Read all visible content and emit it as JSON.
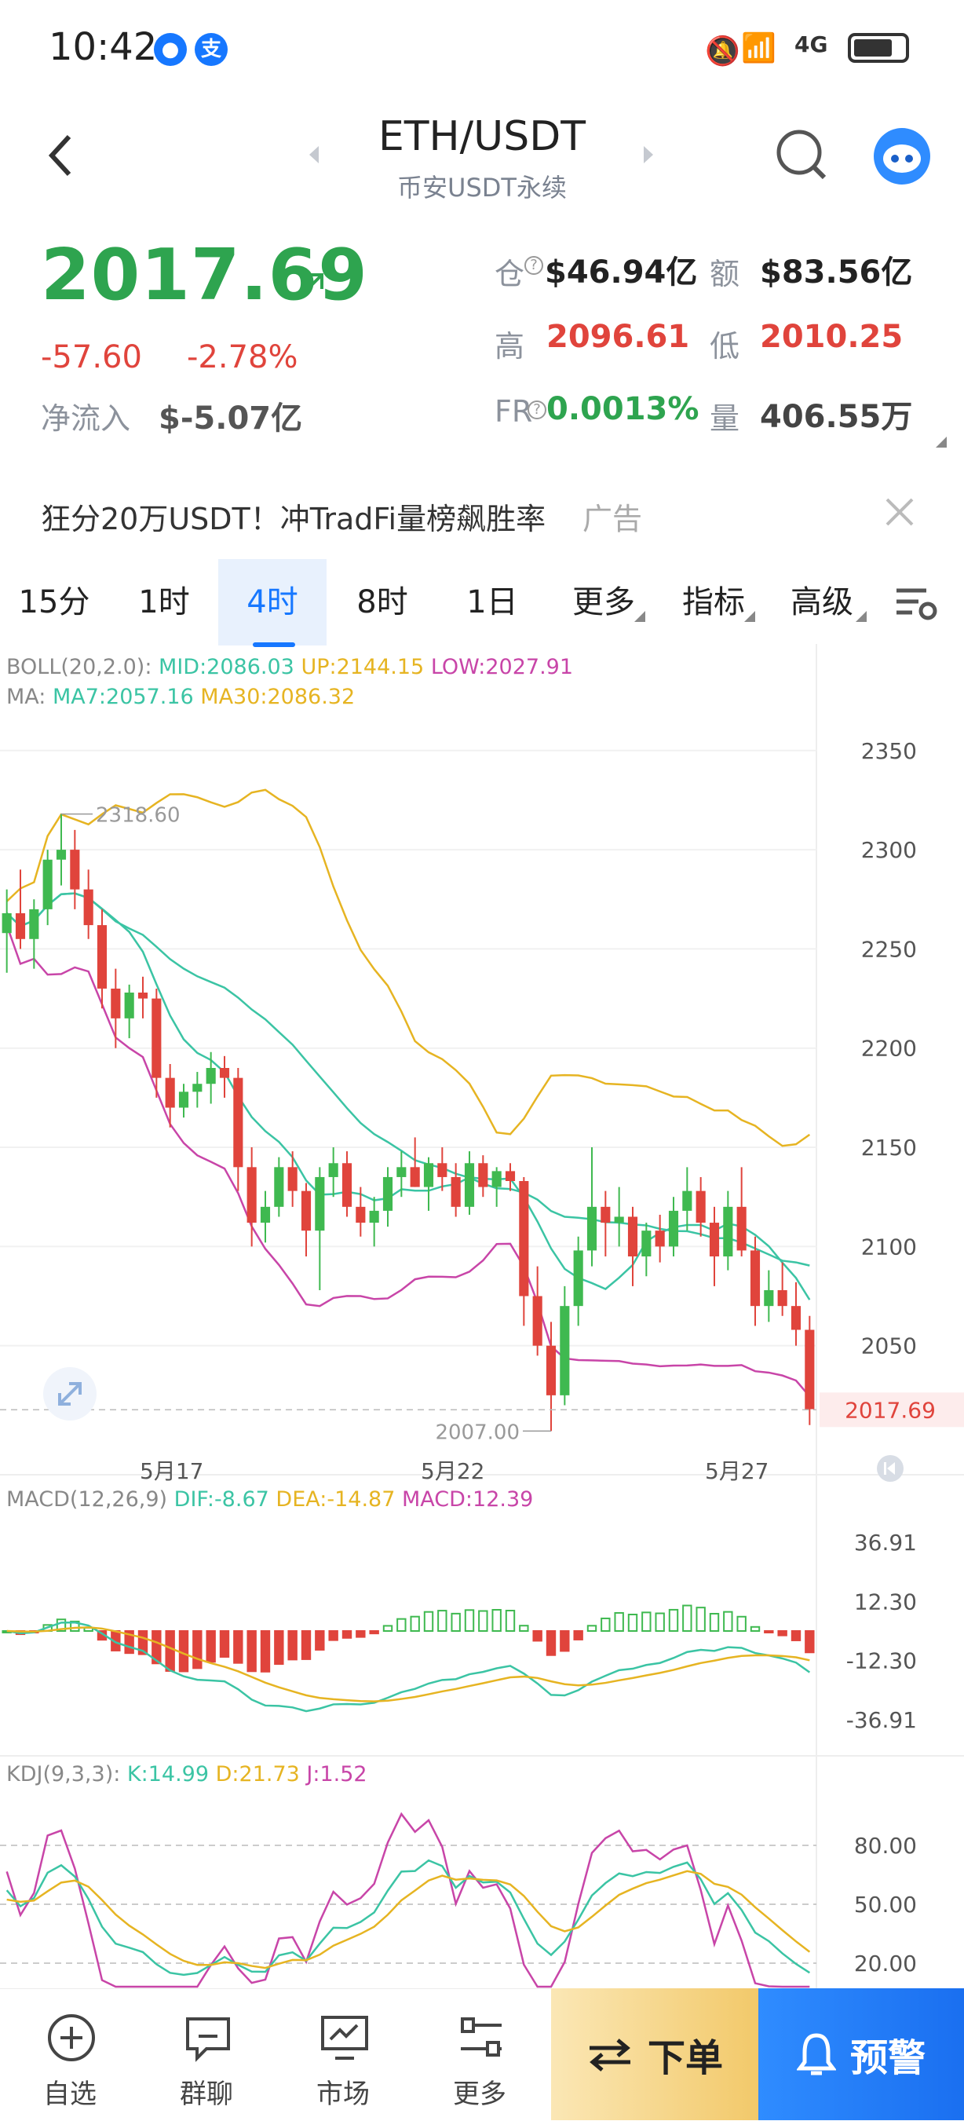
{
  "status_bar": {
    "time": "10:42",
    "network": "4G"
  },
  "header": {
    "pair": "ETH/USDT",
    "subtitle": "币安USDT永续"
  },
  "ticker": {
    "price": "2017.69",
    "change": "-57.60",
    "change_pct": "-2.78%",
    "net_inflow_label": "净流入",
    "net_inflow_value": "$-5.07亿",
    "open_interest_label": "仓",
    "open_interest_value": "$46.94亿",
    "amount_label": "额",
    "amount_value": "$83.56亿",
    "high_label": "高",
    "high_value": "2096.61",
    "low_label": "低",
    "low_value": "2010.25",
    "fr_label": "FR",
    "fr_value": "0.0013%",
    "volume_label": "量",
    "volume_value": "406.55万"
  },
  "ad": {
    "text": "狂分20万USDT！冲TradFi量榜飙胜率",
    "tag": "广告"
  },
  "timeframes": [
    "15分",
    "1时",
    "4时",
    "8时",
    "1日",
    "更多",
    "指标",
    "高级"
  ],
  "active_timeframe": "4时",
  "indicators": {
    "boll_name": "BOLL(20,2.0):",
    "boll_mid": "MID:2086.03",
    "boll_up": "UP:2144.15",
    "boll_low": "LOW:2027.91",
    "ma_name": "MA:",
    "ma7": "MA7:2057.16",
    "ma30": "MA30:2086.32",
    "macd_name": "MACD(12,26,9)",
    "macd_dif": "DIF:-8.67",
    "macd_dea": "DEA:-14.87",
    "macd_val": "MACD:12.39",
    "kdj_name": "KDJ(9,3,3):",
    "kdj_k": "K:14.99",
    "kdj_d": "D:21.73",
    "kdj_j": "J:1.52"
  },
  "chart_data": [
    {
      "type": "candlestick",
      "y_ticks": [
        "2350",
        "2300",
        "2250",
        "2200",
        "2150",
        "2100",
        "2050"
      ],
      "ylim": [
        2000,
        2380
      ],
      "x_labels": [
        "5月17",
        "5月22",
        "5月27"
      ],
      "max_label": "2318.60",
      "min_label": "2007.00",
      "last_price_label": "2017.69",
      "ohlc": [
        [
          2258,
          2280,
          2238,
          2268
        ],
        [
          2268,
          2290,
          2250,
          2255
        ],
        [
          2255,
          2275,
          2240,
          2270
        ],
        [
          2270,
          2300,
          2262,
          2295
        ],
        [
          2295,
          2318,
          2282,
          2300
        ],
        [
          2300,
          2310,
          2270,
          2280
        ],
        [
          2280,
          2290,
          2255,
          2262
        ],
        [
          2262,
          2270,
          2220,
          2230
        ],
        [
          2230,
          2240,
          2200,
          2215
        ],
        [
          2215,
          2232,
          2205,
          2228
        ],
        [
          2228,
          2236,
          2215,
          2225
        ],
        [
          2225,
          2230,
          2175,
          2185
        ],
        [
          2185,
          2192,
          2160,
          2170
        ],
        [
          2170,
          2182,
          2165,
          2178
        ],
        [
          2178,
          2188,
          2170,
          2182
        ],
        [
          2182,
          2198,
          2172,
          2190
        ],
        [
          2190,
          2196,
          2175,
          2185
        ],
        [
          2185,
          2190,
          2128,
          2140
        ],
        [
          2140,
          2150,
          2100,
          2112
        ],
        [
          2112,
          2128,
          2102,
          2120
        ],
        [
          2120,
          2145,
          2115,
          2140
        ],
        [
          2140,
          2148,
          2120,
          2128
        ],
        [
          2128,
          2132,
          2095,
          2108
        ],
        [
          2108,
          2140,
          2078,
          2135
        ],
        [
          2135,
          2150,
          2125,
          2142
        ],
        [
          2142,
          2148,
          2115,
          2120
        ],
        [
          2120,
          2130,
          2105,
          2112
        ],
        [
          2112,
          2125,
          2100,
          2118
        ],
        [
          2118,
          2140,
          2110,
          2135
        ],
        [
          2135,
          2148,
          2125,
          2140
        ],
        [
          2140,
          2155,
          2130,
          2130
        ],
        [
          2130,
          2145,
          2118,
          2142
        ],
        [
          2142,
          2150,
          2128,
          2135
        ],
        [
          2135,
          2142,
          2115,
          2120
        ],
        [
          2120,
          2148,
          2116,
          2142
        ],
        [
          2142,
          2146,
          2125,
          2130
        ],
        [
          2130,
          2140,
          2120,
          2138
        ],
        [
          2138,
          2142,
          2128,
          2133
        ],
        [
          2133,
          2135,
          2060,
          2075
        ],
        [
          2075,
          2090,
          2045,
          2050
        ],
        [
          2050,
          2062,
          2007,
          2025
        ],
        [
          2025,
          2080,
          2020,
          2070
        ],
        [
          2070,
          2105,
          2060,
          2098
        ],
        [
          2098,
          2150,
          2090,
          2120
        ],
        [
          2120,
          2128,
          2095,
          2112
        ],
        [
          2112,
          2130,
          2100,
          2115
        ],
        [
          2115,
          2120,
          2080,
          2095
        ],
        [
          2095,
          2112,
          2085,
          2108
        ],
        [
          2108,
          2116,
          2092,
          2100
        ],
        [
          2100,
          2125,
          2095,
          2118
        ],
        [
          2118,
          2140,
          2108,
          2128
        ],
        [
          2128,
          2135,
          2105,
          2112
        ],
        [
          2112,
          2120,
          2080,
          2095
        ],
        [
          2095,
          2128,
          2088,
          2120
        ],
        [
          2120,
          2140,
          2095,
          2098
        ],
        [
          2098,
          2105,
          2060,
          2070
        ],
        [
          2070,
          2088,
          2062,
          2078
        ],
        [
          2078,
          2092,
          2065,
          2070
        ],
        [
          2070,
          2082,
          2050,
          2058
        ],
        [
          2058,
          2065,
          2010,
          2018
        ]
      ]
    },
    {
      "type": "bar",
      "name": "MACD",
      "y_ticks": [
        "36.91",
        "12.30",
        "-12.30",
        "-36.91"
      ]
    },
    {
      "type": "line",
      "name": "KDJ",
      "y_ticks": [
        "80.00",
        "50.00",
        "20.00"
      ]
    }
  ],
  "nav": [
    {
      "label": "自选",
      "icon": "plus-circle-icon"
    },
    {
      "label": "群聊",
      "icon": "chat-icon"
    },
    {
      "label": "市场",
      "icon": "market-chart-icon"
    },
    {
      "label": "更多",
      "icon": "more-sliders-icon"
    }
  ],
  "order_button": "下单",
  "alert_button": "预警"
}
